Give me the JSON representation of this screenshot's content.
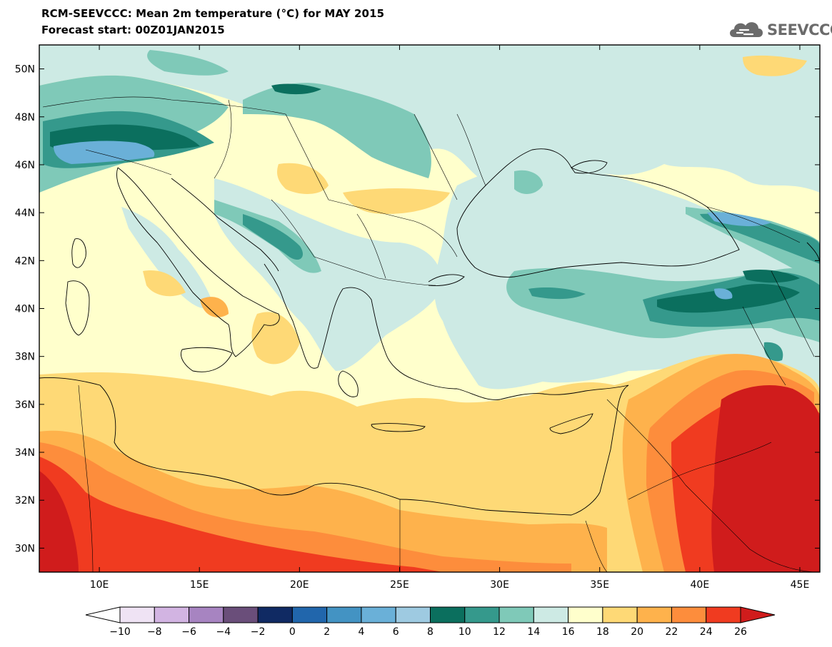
{
  "header": {
    "title_line1": "RCM-SEEVCCC: Mean 2m temperature (°C) for MAY 2015",
    "title_line2": "Forecast start: 00Z01JAN2015"
  },
  "logo": {
    "text": "SEEVCCC",
    "icon": "cloud-icon"
  },
  "map": {
    "projection": "lat-lon",
    "lon_range": [
      7,
      46
    ],
    "lat_range": [
      29,
      51
    ],
    "lon_ticks": [
      "10E",
      "15E",
      "20E",
      "25E",
      "30E",
      "35E",
      "40E",
      "45E"
    ],
    "lat_ticks": [
      "50N",
      "48N",
      "46N",
      "44N",
      "42N",
      "40N",
      "38N",
      "36N",
      "34N",
      "32N",
      "30N"
    ]
  },
  "colorbar": {
    "labels": [
      "−10",
      "−8",
      "−6",
      "−4",
      "−2",
      "0",
      "2",
      "4",
      "6",
      "8",
      "10",
      "12",
      "14",
      "16",
      "18",
      "20",
      "22",
      "24",
      "26"
    ],
    "colors": [
      "#ffffff",
      "#efe3f4",
      "#d2b4e2",
      "#a784c1",
      "#6a4e7a",
      "#102a63",
      "#2166ac",
      "#4393c3",
      "#6ab0d8",
      "#9ecae1",
      "#0b6f5e",
      "#35998c",
      "#7fc9b8",
      "#cdeae4",
      "#ffffcc",
      "#fed976",
      "#feb24c",
      "#fd8d3c",
      "#f03b20",
      "#d01c1c"
    ]
  }
}
